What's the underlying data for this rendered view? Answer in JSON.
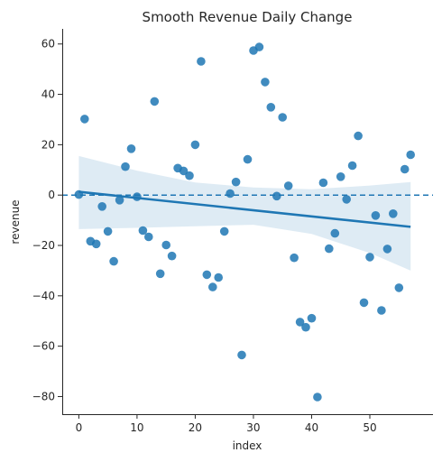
{
  "chart_data": {
    "type": "scatter",
    "title": "Smooth Revenue Daily Change",
    "xlabel": "index",
    "ylabel": "revenue",
    "xlim": [
      -2.85,
      60.85
    ],
    "ylim": [
      -87,
      66
    ],
    "xticks": [
      0,
      10,
      20,
      30,
      40,
      50
    ],
    "yticks": [
      -80,
      -60,
      -40,
      -20,
      0,
      20,
      40,
      60
    ],
    "xtick_labels": [
      "0",
      "10",
      "20",
      "30",
      "40",
      "50"
    ],
    "ytick_labels": [
      "−80",
      "−60",
      "−40",
      "−20",
      "0",
      "20",
      "40",
      "60"
    ],
    "grid": false,
    "point_color": "#1f77b4",
    "points": [
      {
        "x": 0,
        "y": 0.2
      },
      {
        "x": 1,
        "y": 30.2
      },
      {
        "x": 2,
        "y": -18.3
      },
      {
        "x": 3,
        "y": -19.4
      },
      {
        "x": 4,
        "y": -4.5
      },
      {
        "x": 5,
        "y": -14.4
      },
      {
        "x": 6,
        "y": -26.3
      },
      {
        "x": 7,
        "y": -2.0
      },
      {
        "x": 8,
        "y": 11.3
      },
      {
        "x": 9,
        "y": 18.4
      },
      {
        "x": 10,
        "y": -0.7
      },
      {
        "x": 11,
        "y": -14.1
      },
      {
        "x": 12,
        "y": -16.6
      },
      {
        "x": 13,
        "y": 37.2
      },
      {
        "x": 14,
        "y": -31.2
      },
      {
        "x": 15,
        "y": -19.8
      },
      {
        "x": 16,
        "y": -24.2
      },
      {
        "x": 17,
        "y": 10.7
      },
      {
        "x": 18,
        "y": 9.6
      },
      {
        "x": 19,
        "y": 7.7
      },
      {
        "x": 20,
        "y": 20.0
      },
      {
        "x": 21,
        "y": 53.1
      },
      {
        "x": 22,
        "y": -31.6
      },
      {
        "x": 23,
        "y": -36.5
      },
      {
        "x": 24,
        "y": -32.7
      },
      {
        "x": 25,
        "y": -14.4
      },
      {
        "x": 26,
        "y": 0.6
      },
      {
        "x": 27,
        "y": 5.2
      },
      {
        "x": 28,
        "y": -63.5
      },
      {
        "x": 29,
        "y": 14.2
      },
      {
        "x": 30,
        "y": 57.4
      },
      {
        "x": 31,
        "y": 58.8
      },
      {
        "x": 32,
        "y": 44.9
      },
      {
        "x": 33,
        "y": 34.9
      },
      {
        "x": 34,
        "y": -0.4
      },
      {
        "x": 35,
        "y": 30.9
      },
      {
        "x": 36,
        "y": 3.7
      },
      {
        "x": 37,
        "y": -24.9
      },
      {
        "x": 38,
        "y": -50.4
      },
      {
        "x": 39,
        "y": -52.5
      },
      {
        "x": 40,
        "y": -48.9
      },
      {
        "x": 41,
        "y": -80.2
      },
      {
        "x": 42,
        "y": 4.9
      },
      {
        "x": 43,
        "y": -21.3
      },
      {
        "x": 44,
        "y": -15.2
      },
      {
        "x": 45,
        "y": 7.3
      },
      {
        "x": 46,
        "y": -1.7
      },
      {
        "x": 47,
        "y": 11.7
      },
      {
        "x": 48,
        "y": 23.5
      },
      {
        "x": 49,
        "y": -42.7
      },
      {
        "x": 50,
        "y": -24.6
      },
      {
        "x": 51,
        "y": -8.1
      },
      {
        "x": 52,
        "y": -45.8
      },
      {
        "x": 53,
        "y": -21.4
      },
      {
        "x": 54,
        "y": -7.4
      },
      {
        "x": 55,
        "y": -36.8
      },
      {
        "x": 56,
        "y": 10.3
      },
      {
        "x": 57,
        "y": 16.0
      }
    ],
    "regression": {
      "color": "#1f77b4",
      "line": {
        "x": [
          0,
          57
        ],
        "y": [
          1.3,
          -12.6
        ]
      },
      "ci_band": {
        "x": [
          0,
          10,
          20,
          30,
          40,
          50,
          57
        ],
        "upper": [
          15.5,
          9.7,
          5.0,
          3.0,
          2.3,
          3.8,
          5.2
        ],
        "lower": [
          -13.5,
          -13.0,
          -12.4,
          -11.8,
          -15.4,
          -23.0,
          -30.0
        ]
      }
    },
    "reference_line": {
      "y": 0,
      "style": "dashed",
      "color": "#1f77b4"
    }
  }
}
